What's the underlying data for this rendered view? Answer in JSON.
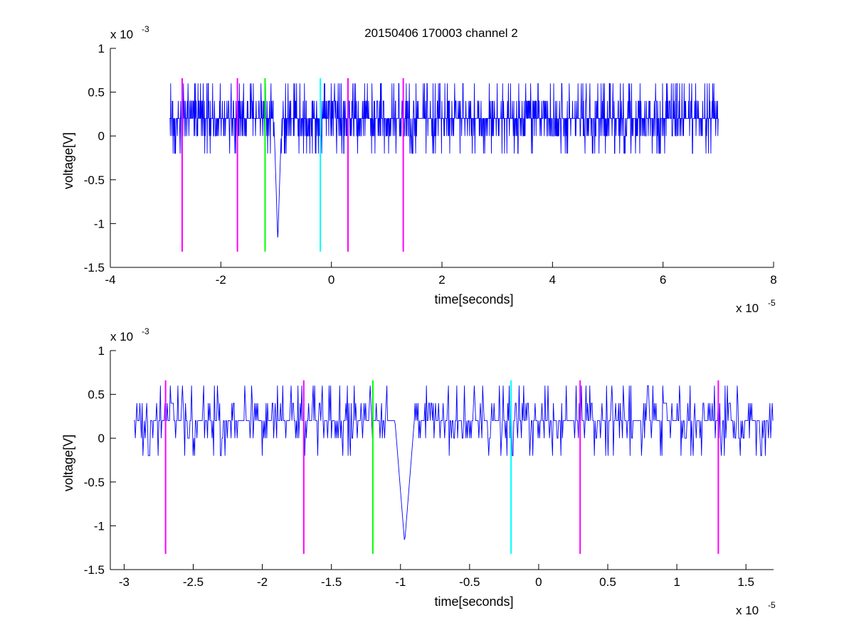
{
  "figure": {
    "title": "20150406 170003 channel 2"
  },
  "colors": {
    "signal": "#0000ff",
    "magenta": "#ff00ff",
    "green": "#00ff00",
    "cyan": "#00ffff",
    "axis": "#000000",
    "background": "#ffffff"
  },
  "chart_data": [
    {
      "type": "line",
      "title": "20150406 170003 channel 2",
      "xlabel": "time[seconds]",
      "ylabel": "voltage[V]",
      "x_exponent_base": "x 10",
      "x_exponent": "-5",
      "y_exponent_base": "x 10",
      "y_exponent": "-3",
      "x_unit_scale": 1e-05,
      "y_unit_scale": 0.001,
      "xlim": [
        -4,
        8
      ],
      "ylim": [
        -1.5,
        1
      ],
      "xticks": [
        -4,
        -2,
        0,
        2,
        4,
        6,
        8
      ],
      "xtick_labels": [
        "-4",
        "-2",
        "0",
        "2",
        "4",
        "6",
        "8"
      ],
      "yticks": [
        -1.5,
        -1,
        -0.5,
        0,
        0.5,
        1
      ],
      "ytick_labels": [
        "-1.5",
        "-1",
        "-0.5",
        "0",
        "0.5",
        "1"
      ],
      "grid": false,
      "signal": {
        "x_start": -2.93,
        "x_end": 7.0,
        "baseline": 0.2,
        "spike_x": -0.97,
        "spike_min": -1.2
      },
      "markers": [
        {
          "x": -2.7,
          "color": "magenta",
          "y_top": 0.66,
          "y_bottom": -1.32
        },
        {
          "x": -1.7,
          "color": "magenta",
          "y_top": 0.66,
          "y_bottom": -1.32
        },
        {
          "x": -1.2,
          "color": "green",
          "y_top": 0.66,
          "y_bottom": -1.32
        },
        {
          "x": -0.2,
          "color": "cyan",
          "y_top": 0.66,
          "y_bottom": -1.32
        },
        {
          "x": 0.3,
          "color": "magenta",
          "y_top": 0.66,
          "y_bottom": -1.32
        },
        {
          "x": 1.3,
          "color": "magenta",
          "y_top": 0.66,
          "y_bottom": -1.32
        }
      ]
    },
    {
      "type": "line",
      "title": "",
      "xlabel": "time[seconds]",
      "ylabel": "voltage[V]",
      "x_exponent_base": "x 10",
      "x_exponent": "-5",
      "y_exponent_base": "x 10",
      "y_exponent": "-3",
      "x_unit_scale": 1e-05,
      "y_unit_scale": 0.001,
      "xlim": [
        -3.1,
        1.7
      ],
      "ylim": [
        -1.5,
        1
      ],
      "xticks": [
        -3,
        -2.5,
        -2,
        -1.5,
        -1,
        -0.5,
        0,
        0.5,
        1,
        1.5
      ],
      "xtick_labels": [
        "-3",
        "-2.5",
        "-2",
        "-1.5",
        "-1",
        "-0.5",
        "0",
        "0.5",
        "1",
        "1.5"
      ],
      "yticks": [
        -1.5,
        -1,
        -0.5,
        0,
        0.5,
        1
      ],
      "ytick_labels": [
        "-1.5",
        "-1",
        "-0.5",
        "0",
        "0.5",
        "1"
      ],
      "grid": false,
      "signal": {
        "x_start": -2.93,
        "x_end": 1.7,
        "baseline": 0.2,
        "spike_x": -0.97,
        "spike_min": -1.2
      },
      "markers": [
        {
          "x": -2.7,
          "color": "magenta",
          "y_top": 0.66,
          "y_bottom": -1.32
        },
        {
          "x": -1.7,
          "color": "magenta",
          "y_top": 0.66,
          "y_bottom": -1.32
        },
        {
          "x": -1.2,
          "color": "green",
          "y_top": 0.66,
          "y_bottom": -1.32
        },
        {
          "x": -0.2,
          "color": "cyan",
          "y_top": 0.66,
          "y_bottom": -1.32
        },
        {
          "x": 0.3,
          "color": "magenta",
          "y_top": 0.66,
          "y_bottom": -1.32
        },
        {
          "x": 1.3,
          "color": "magenta",
          "y_top": 0.66,
          "y_bottom": -1.32
        }
      ]
    }
  ]
}
